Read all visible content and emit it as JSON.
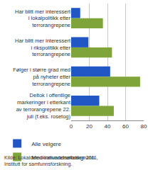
{
  "chart_data": {
    "type": "bar",
    "orientation": "horizontal",
    "categories": [
      "Har blitt mer interessert i lokalpolitikk etter terrorangrepene",
      "Har blitt mer interessert i rikspolitikk etter terrorangrepene",
      "Følger i større grad med på nyheter etter terrorangrepene",
      "Deltok i offentlige markeringer i etterkant av terrorangrepene 22. juli (f.eks. rosetog)"
    ],
    "series": [
      {
        "name": "Alle velgere",
        "color": "#2157c4",
        "values": [
          10,
          19,
          43,
          31
        ]
      },
      {
        "name": "Med innvandrerbakgrunn",
        "color": "#7ea43a",
        "values": [
          35,
          45,
          76,
          47
        ]
      }
    ],
    "xlim": [
      0,
      80
    ],
    "xticks": [
      0,
      20,
      40,
      60,
      80
    ],
    "grid": true,
    "legend": "bottom",
    "source": "Kilde: Lokaldemokratiundersøkelsen 2011, Institutt for samfunnsforskning."
  }
}
